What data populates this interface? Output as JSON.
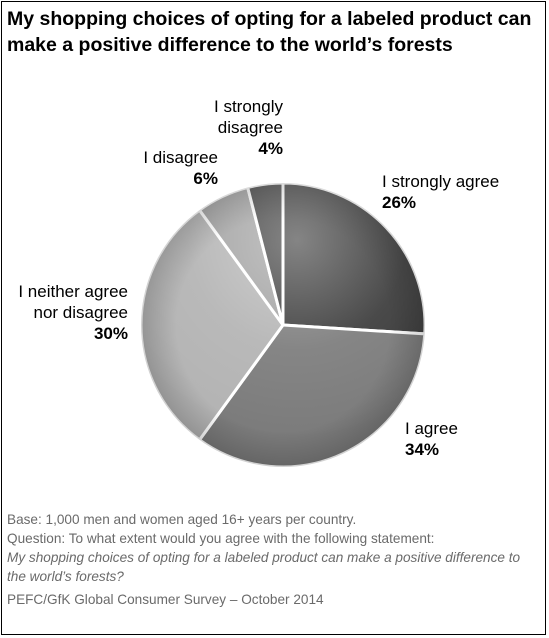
{
  "title": "My shopping choices of opting for a labeled product can make a positive difference to the world’s forests",
  "chart_data": {
    "type": "pie",
    "title": "My shopping choices of opting for a labeled product can make a positive difference to the world’s forests",
    "start_angle_deg": 0,
    "direction": "clockwise",
    "slices": [
      {
        "label": "I strongly agree",
        "value": 26,
        "value_label": "26%",
        "color": "#3a3a3a"
      },
      {
        "label": "I agree",
        "value": 34,
        "value_label": "34%",
        "color": "#7b7b7b"
      },
      {
        "label": "I neither agree nor disagree",
        "value": 30,
        "value_label": "30%",
        "color": "#b3b3b3"
      },
      {
        "label": "I disagree",
        "value": 6,
        "value_label": "6%",
        "color": "#a0a0a0"
      },
      {
        "label": "I strongly disagree",
        "value": 4,
        "value_label": "4%",
        "color": "#3d3d3d"
      }
    ]
  },
  "labels": {
    "strongly_agree": {
      "text": "I strongly agree",
      "pct": "26%"
    },
    "agree": {
      "text": "I agree",
      "pct": "34%"
    },
    "neither_line1": "I neither agree",
    "neither_line2": "nor disagree",
    "neither_pct": "30%",
    "disagree": {
      "text": "I disagree",
      "pct": "6%"
    },
    "strongly_disagree_line1": "I strongly",
    "strongly_disagree_line2": "disagree",
    "strongly_disagree_pct": "4%"
  },
  "footer": {
    "base": "Base: 1,000 men and women aged 16+ years per country.",
    "question": "Question: To what extent would you agree with the following statement:",
    "statement": "My shopping choices of opting for a labeled product can make a positive difference to the world’s forests?",
    "source": "PEFC/GfK Global Consumer Survey – October 2014"
  }
}
